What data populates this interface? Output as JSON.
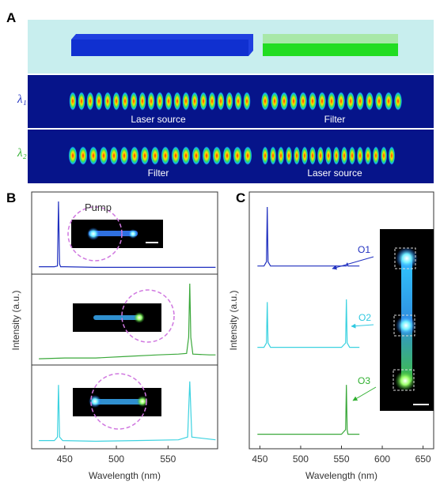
{
  "panel_a": {
    "label": "A",
    "lambda1": "λ₁",
    "lambda2": "λ₂",
    "row1_left": "Laser source",
    "row1_right": "Filter",
    "row2_left": "Filter",
    "row2_right": "Laser source"
  },
  "panel_b": {
    "label": "B",
    "pump": "Pump"
  },
  "panel_c": {
    "label": "C",
    "outputs": [
      "O1",
      "O2",
      "O3"
    ]
  },
  "chart_data": [
    {
      "type": "line",
      "xlabel": "Wavelength (nm)",
      "ylabel": "Intensity (a.u.)",
      "xlim": [
        418,
        598
      ],
      "xticks": [
        450,
        500,
        550
      ],
      "ylim": [
        0,
        1
      ],
      "series": [
        {
          "color": "#1f2fbf",
          "x": [
            425,
            440,
            443,
            444,
            445,
            446,
            450,
            480,
            520,
            560,
            596
          ],
          "values": [
            0.04,
            0.04,
            0.05,
            1.0,
            0.08,
            0.04,
            0.04,
            0.03,
            0.03,
            0.03,
            0.03
          ]
        },
        {
          "color": "#3aa83a",
          "x": [
            425,
            450,
            480,
            510,
            540,
            560,
            568,
            570,
            571,
            572,
            574,
            590,
            596
          ],
          "values": [
            0.02,
            0.03,
            0.03,
            0.05,
            0.07,
            0.08,
            0.09,
            0.3,
            1.0,
            0.3,
            0.08,
            0.07,
            0.07
          ]
        },
        {
          "color": "#3cd2e0",
          "x": [
            425,
            440,
            443,
            444,
            445,
            448,
            480,
            520,
            560,
            569,
            571,
            573,
            596
          ],
          "values": [
            0.05,
            0.05,
            0.1,
            0.85,
            0.1,
            0.05,
            0.04,
            0.05,
            0.06,
            0.1,
            0.9,
            0.1,
            0.06
          ]
        }
      ]
    },
    {
      "type": "line",
      "xlabel": "Wavelength (nm)",
      "ylabel": "Intensity (a.u.)",
      "xlim": [
        437,
        663
      ],
      "xticks": [
        450,
        500,
        550,
        600,
        650
      ],
      "ylim": [
        0,
        1
      ],
      "series": [
        {
          "color": "#1f2fbf",
          "x": [
            447,
            455,
            458,
            459,
            460,
            463,
            500,
            550,
            556,
            557,
            558,
            572
          ],
          "values": [
            0.03,
            0.03,
            0.1,
            1.0,
            0.1,
            0.03,
            0.03,
            0.03,
            0.03,
            0.08,
            0.03,
            0.03
          ]
        },
        {
          "color": "#3cd2e0",
          "x": [
            447,
            455,
            458,
            459,
            460,
            463,
            500,
            550,
            555,
            556,
            557,
            560,
            572
          ],
          "values": [
            0.02,
            0.02,
            0.1,
            0.85,
            0.1,
            0.02,
            0.02,
            0.02,
            0.1,
            0.9,
            0.1,
            0.02,
            0.02
          ]
        },
        {
          "color": "#3aa83a",
          "x": [
            447,
            500,
            550,
            555,
            556,
            557,
            558,
            572
          ],
          "values": [
            0.02,
            0.02,
            0.02,
            0.1,
            0.9,
            0.1,
            0.02,
            0.02
          ]
        }
      ]
    }
  ]
}
